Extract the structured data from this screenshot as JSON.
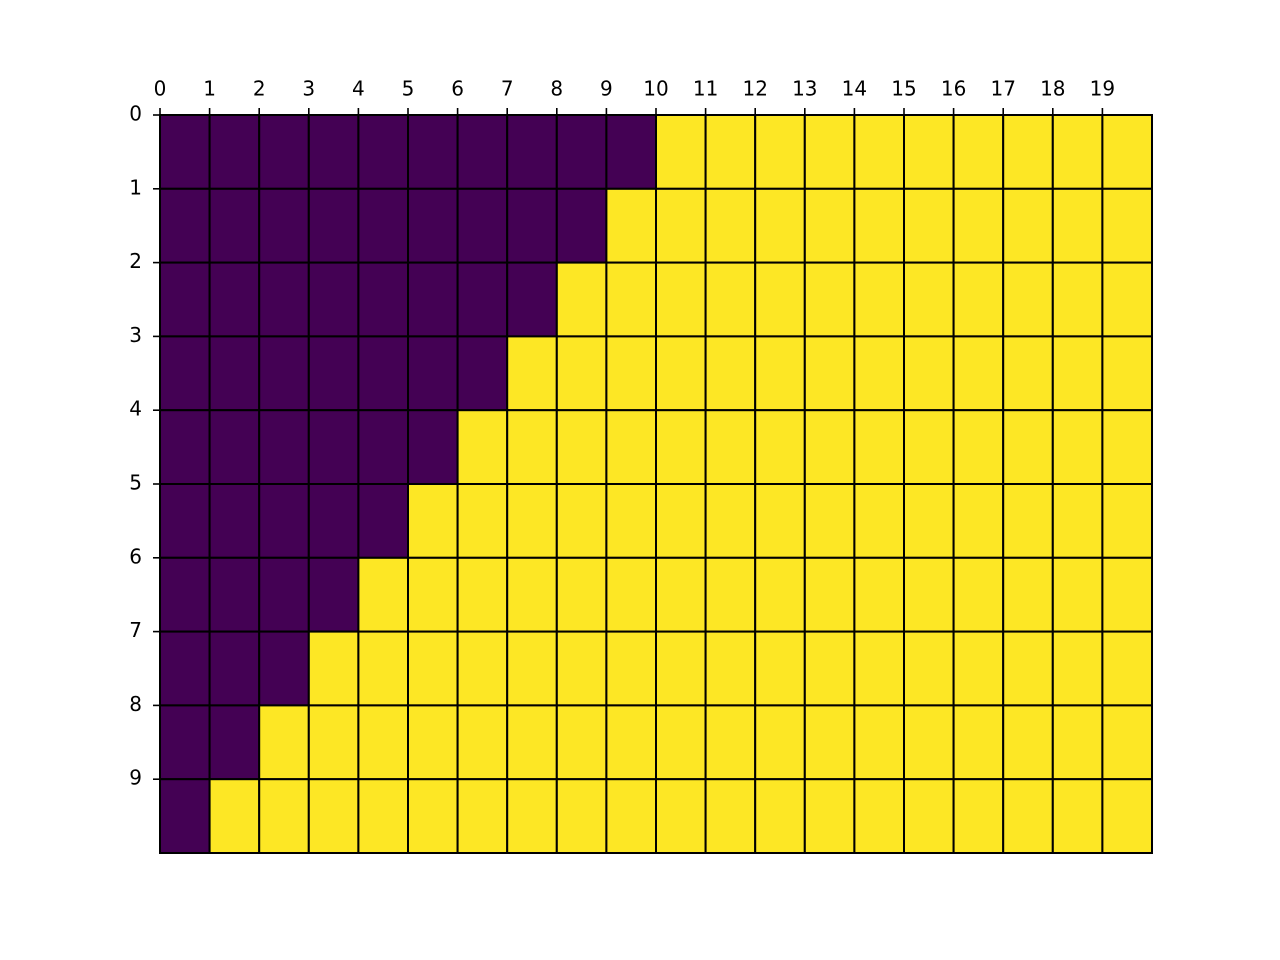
{
  "chart_data": {
    "type": "heatmap",
    "xlim": [
      0,
      20
    ],
    "ylim": [
      10,
      0
    ],
    "xticks": [
      0,
      1,
      2,
      3,
      4,
      5,
      6,
      7,
      8,
      9,
      10,
      11,
      12,
      13,
      14,
      15,
      16,
      17,
      18,
      19
    ],
    "yticks": [
      0,
      1,
      2,
      3,
      4,
      5,
      6,
      7,
      8,
      9
    ],
    "colormap": [
      "#440154",
      "#fde725"
    ],
    "z": [
      [
        0,
        0,
        0,
        0,
        0,
        0,
        0,
        0,
        0,
        0,
        1,
        1,
        1,
        1,
        1,
        1,
        1,
        1,
        1,
        1
      ],
      [
        0,
        0,
        0,
        0,
        0,
        0,
        0,
        0,
        0,
        1,
        1,
        1,
        1,
        1,
        1,
        1,
        1,
        1,
        1,
        1
      ],
      [
        0,
        0,
        0,
        0,
        0,
        0,
        0,
        0,
        1,
        1,
        1,
        1,
        1,
        1,
        1,
        1,
        1,
        1,
        1,
        1
      ],
      [
        0,
        0,
        0,
        0,
        0,
        0,
        0,
        1,
        1,
        1,
        1,
        1,
        1,
        1,
        1,
        1,
        1,
        1,
        1,
        1
      ],
      [
        0,
        0,
        0,
        0,
        0,
        0,
        1,
        1,
        1,
        1,
        1,
        1,
        1,
        1,
        1,
        1,
        1,
        1,
        1,
        1
      ],
      [
        0,
        0,
        0,
        0,
        0,
        1,
        1,
        1,
        1,
        1,
        1,
        1,
        1,
        1,
        1,
        1,
        1,
        1,
        1,
        1
      ],
      [
        0,
        0,
        0,
        0,
        1,
        1,
        1,
        1,
        1,
        1,
        1,
        1,
        1,
        1,
        1,
        1,
        1,
        1,
        1,
        1
      ],
      [
        0,
        0,
        0,
        1,
        1,
        1,
        1,
        1,
        1,
        1,
        1,
        1,
        1,
        1,
        1,
        1,
        1,
        1,
        1,
        1
      ],
      [
        0,
        0,
        1,
        1,
        1,
        1,
        1,
        1,
        1,
        1,
        1,
        1,
        1,
        1,
        1,
        1,
        1,
        1,
        1,
        1
      ],
      [
        0,
        1,
        1,
        1,
        1,
        1,
        1,
        1,
        1,
        1,
        1,
        1,
        1,
        1,
        1,
        1,
        1,
        1,
        1,
        1
      ]
    ]
  }
}
